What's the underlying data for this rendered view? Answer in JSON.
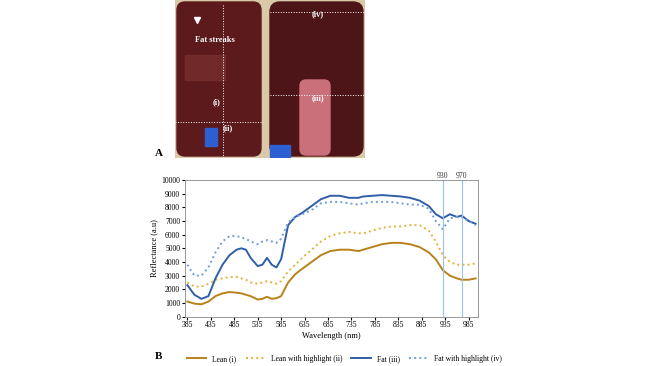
{
  "panel_a": {
    "label": "A",
    "texts": [
      "Fat streaks",
      "(i)",
      "(ii)",
      "(iii)",
      "(iv)"
    ]
  },
  "panel_b_label": "B",
  "chart_data": {
    "type": "line",
    "x_label": "Wavelength (nm)",
    "y_label": "Reflectance (a.u)",
    "x": [
      385,
      400,
      415,
      430,
      445,
      460,
      475,
      490,
      500,
      510,
      520,
      535,
      545,
      555,
      565,
      575,
      585,
      600,
      615,
      630,
      650,
      670,
      690,
      710,
      730,
      750,
      760,
      780,
      800,
      820,
      840,
      860,
      880,
      900,
      915,
      930,
      945,
      960,
      970,
      985,
      1000
    ],
    "series": [
      {
        "name": "Lean (i)",
        "color": "#b8821a",
        "line_style": "solid",
        "values": [
          1100,
          950,
          900,
          1100,
          1500,
          1700,
          1800,
          1750,
          1700,
          1600,
          1500,
          1250,
          1300,
          1450,
          1300,
          1350,
          1500,
          2500,
          3100,
          3500,
          4000,
          4500,
          4800,
          4900,
          4900,
          4800,
          4900,
          5100,
          5300,
          5400,
          5400,
          5300,
          5100,
          4700,
          4200,
          3400,
          3000,
          2800,
          2700,
          2700,
          2800
        ]
      },
      {
        "name": "Lean with highlight (ii)",
        "color": "#e3b23c",
        "line_style": "dotted",
        "values": [
          2500,
          2200,
          2200,
          2400,
          2700,
          2800,
          2900,
          2900,
          2800,
          2700,
          2500,
          2400,
          2500,
          2600,
          2500,
          2400,
          2600,
          3300,
          3800,
          4300,
          4900,
          5500,
          5900,
          6100,
          6200,
          6100,
          6100,
          6300,
          6500,
          6600,
          6600,
          6700,
          6700,
          6300,
          5500,
          4500,
          4000,
          3800,
          3800,
          3800,
          3900
        ]
      },
      {
        "name": "Fat (iii)",
        "color": "#2f5fa6",
        "line_style": "solid",
        "values": [
          2300,
          1600,
          1300,
          1500,
          2800,
          3800,
          4500,
          4900,
          5000,
          4900,
          4300,
          3700,
          3800,
          4300,
          3800,
          3600,
          4200,
          6700,
          7300,
          7600,
          8100,
          8600,
          8850,
          8850,
          8700,
          8700,
          8800,
          8850,
          8900,
          8850,
          8800,
          8700,
          8500,
          8100,
          7500,
          7200,
          7500,
          7300,
          7400,
          7000,
          6800
        ]
      },
      {
        "name": "Fat with highlight (iv)",
        "color": "#6f9fd8",
        "line_style": "dotted",
        "values": [
          3800,
          3000,
          3000,
          3600,
          4700,
          5500,
          5900,
          5900,
          5800,
          5700,
          5500,
          5300,
          5500,
          5600,
          5500,
          5400,
          5700,
          6900,
          7300,
          7500,
          7800,
          8300,
          8400,
          8400,
          8300,
          8200,
          8300,
          8400,
          8400,
          8400,
          8300,
          8200,
          8200,
          7900,
          7000,
          6400,
          7200,
          7300,
          7300,
          7000,
          6700
        ]
      }
    ],
    "vertical_lines": [
      930,
      970
    ],
    "xlim": [
      380,
      1005
    ],
    "xticks": [
      385,
      435,
      485,
      535,
      585,
      635,
      685,
      735,
      785,
      835,
      885,
      935,
      985
    ],
    "ylim": [
      0,
      10000
    ],
    "yticks": [
      0,
      1000,
      2000,
      3000,
      4000,
      5000,
      6000,
      7000,
      8000,
      9000,
      10000
    ],
    "grid": false,
    "legend": "lower center"
  }
}
